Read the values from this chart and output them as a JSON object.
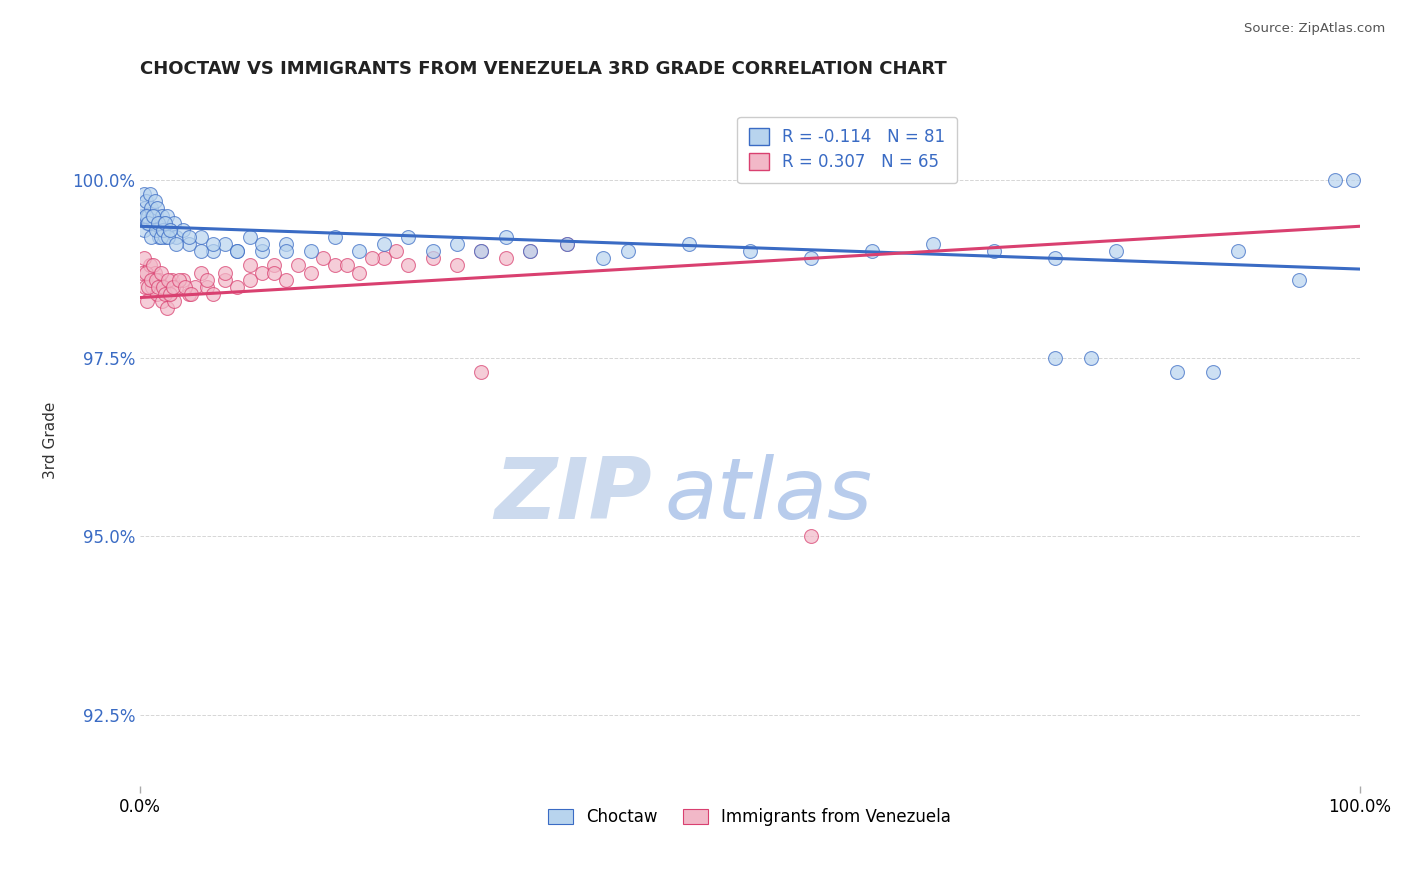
{
  "title": "CHOCTAW VS IMMIGRANTS FROM VENEZUELA 3RD GRADE CORRELATION CHART",
  "source_text": "Source: ZipAtlas.com",
  "ylabel": "3rd Grade",
  "xlim": [
    0.0,
    100.0
  ],
  "ylim": [
    91.5,
    101.2
  ],
  "yticks": [
    92.5,
    95.0,
    97.5,
    100.0
  ],
  "xticks": [
    0.0,
    100.0
  ],
  "xtick_labels": [
    "0.0%",
    "100.0%"
  ],
  "ytick_labels": [
    "92.5%",
    "95.0%",
    "97.5%",
    "100.0%"
  ],
  "choctaw_color": "#b8d4ee",
  "venezuela_color": "#f2b8c8",
  "choctaw_line_color": "#3a6bc4",
  "venezuela_line_color": "#d94070",
  "watermark_zip_color": "#d0dff0",
  "watermark_atlas_color": "#c0d4ec",
  "legend_label1": "Choctaw",
  "legend_label2": "Immigrants from Venezuela",
  "blue_R": -0.114,
  "blue_N": 81,
  "pink_R": 0.307,
  "pink_N": 65,
  "choctaw_x": [
    0.2,
    0.3,
    0.4,
    0.5,
    0.6,
    0.7,
    0.8,
    0.9,
    1.0,
    1.1,
    1.2,
    1.3,
    1.4,
    1.5,
    1.6,
    1.7,
    1.8,
    1.9,
    2.0,
    2.1,
    2.2,
    2.5,
    2.8,
    3.0,
    3.5,
    4.0,
    5.0,
    6.0,
    7.0,
    8.0,
    9.0,
    10.0,
    12.0,
    14.0,
    16.0,
    18.0,
    20.0,
    22.0,
    24.0,
    26.0,
    28.0,
    30.0,
    32.0,
    35.0,
    38.0,
    40.0,
    45.0,
    50.0,
    55.0,
    60.0,
    65.0,
    70.0,
    75.0,
    80.0,
    75.0,
    78.0,
    85.0,
    88.0,
    90.0,
    95.0,
    98.0,
    99.5,
    0.3,
    0.5,
    0.7,
    0.9,
    1.1,
    1.3,
    1.5,
    1.7,
    1.9,
    2.1,
    2.3,
    2.5,
    3.0,
    4.0,
    5.0,
    6.0,
    8.0,
    10.0,
    12.0
  ],
  "choctaw_y": [
    99.5,
    99.8,
    99.6,
    99.7,
    99.4,
    99.5,
    99.8,
    99.6,
    99.5,
    99.4,
    99.7,
    99.5,
    99.6,
    99.3,
    99.2,
    99.4,
    99.5,
    99.3,
    99.4,
    99.2,
    99.5,
    99.3,
    99.4,
    99.2,
    99.3,
    99.1,
    99.2,
    99.0,
    99.1,
    99.0,
    99.2,
    99.0,
    99.1,
    99.0,
    99.2,
    99.0,
    99.1,
    99.2,
    99.0,
    99.1,
    99.0,
    99.2,
    99.0,
    99.1,
    98.9,
    99.0,
    99.1,
    99.0,
    98.9,
    99.0,
    99.1,
    99.0,
    98.9,
    99.0,
    97.5,
    97.5,
    97.3,
    97.3,
    99.0,
    98.6,
    100.0,
    100.0,
    99.3,
    99.5,
    99.4,
    99.2,
    99.5,
    99.3,
    99.4,
    99.2,
    99.3,
    99.4,
    99.2,
    99.3,
    99.1,
    99.2,
    99.0,
    99.1,
    99.0,
    99.1,
    99.0
  ],
  "venezuela_x": [
    0.2,
    0.4,
    0.6,
    0.8,
    1.0,
    1.2,
    1.4,
    1.6,
    1.8,
    2.0,
    2.2,
    2.4,
    2.6,
    2.8,
    3.0,
    3.5,
    4.0,
    4.5,
    5.0,
    5.5,
    6.0,
    7.0,
    8.0,
    9.0,
    10.0,
    11.0,
    12.0,
    14.0,
    16.0,
    18.0,
    20.0,
    22.0,
    24.0,
    26.0,
    28.0,
    30.0,
    32.0,
    35.0,
    0.3,
    0.5,
    0.7,
    0.9,
    1.1,
    1.3,
    1.5,
    1.7,
    1.9,
    2.1,
    2.3,
    2.5,
    2.7,
    3.2,
    3.7,
    4.2,
    5.5,
    7.0,
    9.0,
    11.0,
    13.0,
    15.0,
    17.0,
    19.0,
    21.0,
    55.0,
    28.0
  ],
  "venezuela_y": [
    98.7,
    98.5,
    98.3,
    98.8,
    98.5,
    98.7,
    98.4,
    98.6,
    98.3,
    98.5,
    98.2,
    98.4,
    98.6,
    98.3,
    98.5,
    98.6,
    98.4,
    98.5,
    98.7,
    98.5,
    98.4,
    98.6,
    98.5,
    98.6,
    98.7,
    98.8,
    98.6,
    98.7,
    98.8,
    98.7,
    98.9,
    98.8,
    98.9,
    98.8,
    99.0,
    98.9,
    99.0,
    99.1,
    98.9,
    98.7,
    98.5,
    98.6,
    98.8,
    98.6,
    98.5,
    98.7,
    98.5,
    98.4,
    98.6,
    98.4,
    98.5,
    98.6,
    98.5,
    98.4,
    98.6,
    98.7,
    98.8,
    98.7,
    98.8,
    98.9,
    98.8,
    98.9,
    99.0,
    95.0,
    97.3
  ],
  "choctaw_line_x0": 0.0,
  "choctaw_line_x1": 100.0,
  "choctaw_line_y0": 99.35,
  "choctaw_line_y1": 98.75,
  "venezuela_line_x0": 0.0,
  "venezuela_line_x1": 100.0,
  "venezuela_line_y0": 98.35,
  "venezuela_line_y1": 99.35
}
